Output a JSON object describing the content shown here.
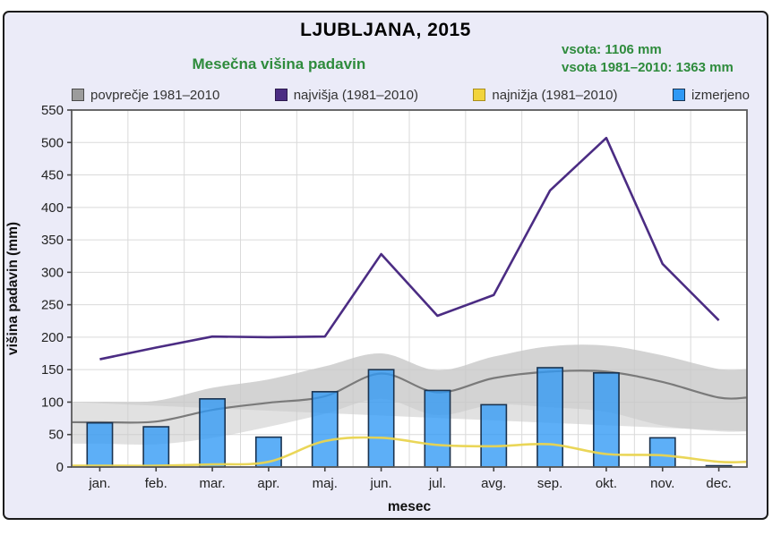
{
  "header": {
    "title": "LJUBLJANA, 2015",
    "subtitle": "Mesečna višina padavin",
    "sum_measured": "vsota: 1106 mm",
    "sum_normal": "vsota 1981–2010: 1363 mm",
    "accent_green": "#2e8b3c"
  },
  "legend": [
    {
      "label": "povprečje 1981–2010",
      "color": "#9c9c9c",
      "border": "#4a4a4a"
    },
    {
      "label": "najvišja (1981–2010)",
      "color": "#4b2c83",
      "border": "#2c1a4d"
    },
    {
      "label": "najnižja (1981–2010)",
      "color": "#f2d43c",
      "border": "#a98e1d"
    },
    {
      "label": "izmerjeno",
      "color": "#2f99f5",
      "border": "#1a3350"
    }
  ],
  "chart_data": {
    "type": "bar",
    "title": "LJUBLJANA, 2015",
    "subtitle": "Mesečna višina padavin",
    "xlabel": "mesec",
    "ylabel": "višina padavin (mm)",
    "ylim": [
      0,
      550
    ],
    "ytick_step": 50,
    "grid": true,
    "legend_position": "top",
    "annotations": [
      "vsota: 1106 mm",
      "vsota 1981–2010: 1363 mm"
    ],
    "categories": [
      "jan.",
      "feb.",
      "mar.",
      "apr.",
      "maj.",
      "jun.",
      "jul.",
      "avg.",
      "sep.",
      "okt.",
      "nov.",
      "dec."
    ],
    "series": [
      {
        "name": "izmerjeno",
        "type": "bar",
        "color": "#2f99f5",
        "values": [
          68,
          62,
          105,
          46,
          116,
          150,
          118,
          96,
          153,
          145,
          45,
          2
        ]
      },
      {
        "name": "povprečje 1981–2010",
        "type": "line",
        "color": "#7a7a7a",
        "values": [
          69,
          70,
          88,
          99,
          109,
          144,
          115,
          137,
          147,
          147,
          131,
          107
        ],
        "band_upper": [
          100,
          102,
          122,
          135,
          155,
          175,
          149,
          170,
          186,
          187,
          172,
          151
        ],
        "band_lower": [
          36,
          35,
          45,
          62,
          82,
          105,
          80,
          96,
          92,
          85,
          64,
          55
        ],
        "band_color": "#c8c8c8"
      },
      {
        "name": "najvišja (1981–2010)",
        "type": "line",
        "color": "#4b2c83",
        "values": [
          166,
          184,
          201,
          200,
          201,
          328,
          233,
          265,
          426,
          507,
          313,
          226
        ]
      },
      {
        "name": "najnižja (1981–2010)",
        "type": "line",
        "color": "#e9d44f",
        "values": [
          2,
          2,
          4,
          8,
          40,
          45,
          34,
          32,
          35,
          20,
          18,
          8
        ]
      }
    ]
  }
}
